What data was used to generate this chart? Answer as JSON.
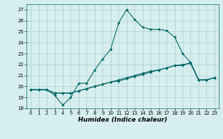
{
  "xlabel": "Humidex (Indice chaleur)",
  "ylabel": "",
  "background_color": "#d6eeee",
  "grid_color": "#aacccc",
  "line_color": "#006666",
  "xlim": [
    -0.5,
    23.5
  ],
  "ylim": [
    18,
    27.5
  ],
  "yticks": [
    18,
    19,
    20,
    21,
    22,
    23,
    24,
    25,
    26,
    27
  ],
  "xticks": [
    0,
    1,
    2,
    3,
    4,
    5,
    6,
    7,
    8,
    9,
    10,
    11,
    12,
    13,
    14,
    15,
    16,
    17,
    18,
    19,
    20,
    21,
    22,
    23
  ],
  "series": [
    [
      19.7,
      19.7,
      19.7,
      19.2,
      18.3,
      19.0,
      20.3,
      20.3,
      21.5,
      22.5,
      23.4,
      25.8,
      27.0,
      26.1,
      25.4,
      25.2,
      25.2,
      25.1,
      24.5,
      23.0,
      22.2,
      20.6,
      20.6,
      20.8
    ],
    [
      19.7,
      19.7,
      19.7,
      19.4,
      19.4,
      19.4,
      19.6,
      19.8,
      20.0,
      20.2,
      20.4,
      20.5,
      20.7,
      20.9,
      21.1,
      21.3,
      21.5,
      21.7,
      21.9,
      22.0,
      22.1,
      20.6,
      20.6,
      20.8
    ],
    [
      19.7,
      19.7,
      19.7,
      19.4,
      19.4,
      19.4,
      19.6,
      19.8,
      20.0,
      20.2,
      20.4,
      20.6,
      20.8,
      21.0,
      21.2,
      21.4,
      21.5,
      21.7,
      21.9,
      21.9,
      22.2,
      20.6,
      20.6,
      20.8
    ]
  ],
  "figsize": [
    3.2,
    2.0
  ],
  "dpi": 100,
  "title_fontsize": 7,
  "tick_fontsize": 5,
  "xlabel_fontsize": 6.5,
  "linewidth": 0.8,
  "markersize": 1.8
}
